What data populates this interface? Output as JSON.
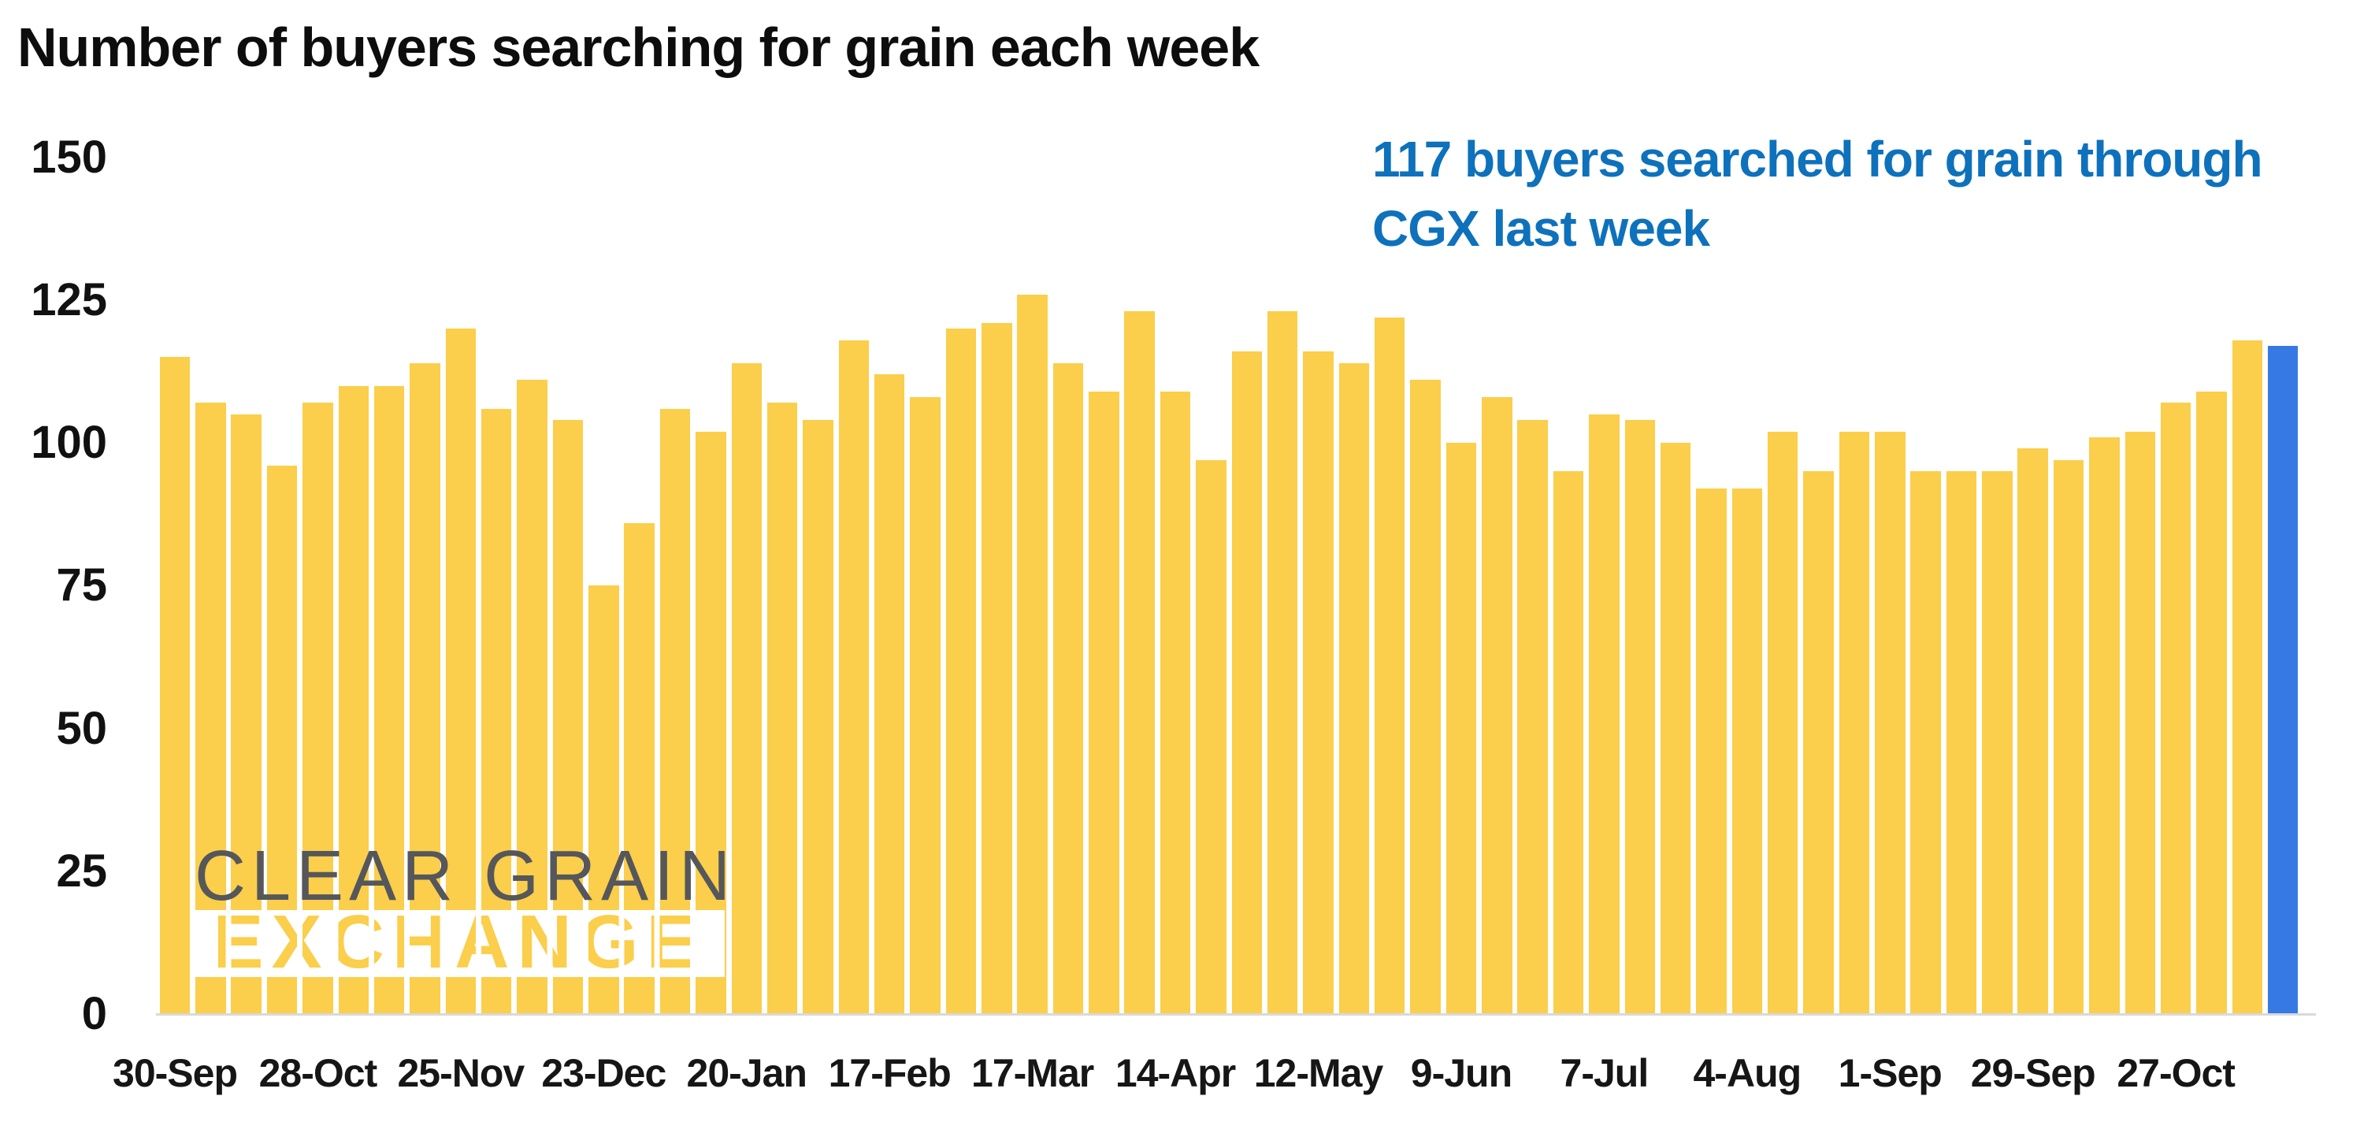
{
  "page": {
    "background": "#FFFFFF"
  },
  "title": {
    "text": "Number of buyers searching for grain each week"
  },
  "annotation": {
    "line1": "117 buyers searched for grain through",
    "line2": "CGX last week",
    "color": "#0E71BC"
  },
  "watermark": {
    "line1": "CLEAR GRAIN",
    "line2": "EXCHANGE"
  },
  "colors": {
    "bar": "#FBCE4B",
    "highlight_bar": "#3679E4",
    "axis_line": "#D9D9D9",
    "tick_text": "#111111",
    "logo_gray": "#55575B"
  },
  "chart_data": {
    "type": "bar",
    "title": "Number of buyers searching for grain each week",
    "xlabel": "",
    "ylabel": "",
    "ylim": [
      0,
      150
    ],
    "y_ticks": [
      150,
      125,
      100,
      75,
      50,
      25,
      0
    ],
    "x_tick_labels": [
      "30-Sep",
      "28-Oct",
      "25-Nov",
      "23-Dec",
      "20-Jan",
      "17-Feb",
      "17-Mar",
      "14-Apr",
      "12-May",
      "9-Jun",
      "7-Jul",
      "4-Aug",
      "1-Sep",
      "29-Sep",
      "27-Oct"
    ],
    "x_tick_indices": [
      0,
      4,
      8,
      12,
      16,
      20,
      24,
      28,
      32,
      36,
      40,
      44,
      48,
      52,
      56
    ],
    "series_name": "Buyers searching for grain each week",
    "values": [
      115,
      107,
      105,
      96,
      107,
      110,
      110,
      114,
      120,
      106,
      111,
      104,
      75,
      86,
      106,
      102,
      114,
      107,
      104,
      118,
      112,
      108,
      120,
      121,
      126,
      114,
      109,
      123,
      109,
      97,
      116,
      123,
      116,
      114,
      122,
      111,
      100,
      108,
      104,
      95,
      105,
      104,
      100,
      92,
      92,
      102,
      95,
      102,
      102,
      95,
      95,
      95,
      99,
      97,
      101,
      102,
      107,
      109,
      118,
      117
    ],
    "highlight_index": 59,
    "highlight_value": 117,
    "grid": false,
    "legend": false
  }
}
